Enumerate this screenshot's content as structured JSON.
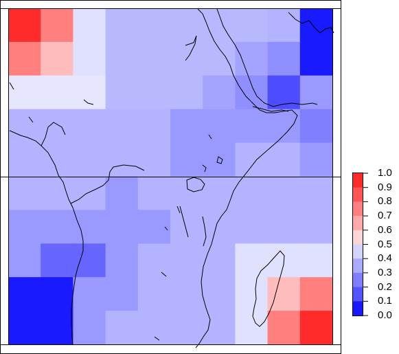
{
  "map": {
    "grid_rows": [
      [
        "#ff2a2a",
        "#ff7f7f",
        "#e0e0ff",
        "#b8b8ff",
        "#b8b8ff",
        "#b8b8ff",
        "#b8b8ff",
        "#b8b8ff",
        "#b3b3ff",
        "#1a1aff"
      ],
      [
        "#ff7f7f",
        "#ffbcbc",
        "#e0e0ff",
        "#b8b8ff",
        "#b8b8ff",
        "#b8b8ff",
        "#b8b8ff",
        "#a4a4ff",
        "#8f8fff",
        "#1a1aff"
      ],
      [
        "#e6e6ff",
        "#e6e6ff",
        "#e6e6ff",
        "#b8b8ff",
        "#b8b8ff",
        "#b8b8ff",
        "#a4a4ff",
        "#8f8fff",
        "#4d4dff",
        "#9999ff"
      ],
      [
        "#b3b3ff",
        "#b3b3ff",
        "#b3b3ff",
        "#b3b3ff",
        "#b3b3ff",
        "#9999ff",
        "#9999ff",
        "#9999ff",
        "#9999ff",
        "#8080ff"
      ],
      [
        "#b3b3ff",
        "#b3b3ff",
        "#b3b3ff",
        "#b3b3ff",
        "#b3b3ff",
        "#9999ff",
        "#9999ff",
        "#b3b3ff",
        "#b3b3ff",
        "#9999ff"
      ],
      [
        "#b3b3ff",
        "#b3b3ff",
        "#b3b3ff",
        "#9999ff",
        "#b3b3ff",
        "#b3b3ff",
        "#b3b3ff",
        "#b3b3ff",
        "#b3b3ff",
        "#b3b3ff"
      ],
      [
        "#9999ff",
        "#9999ff",
        "#9999ff",
        "#9999ff",
        "#9999ff",
        "#b3b3ff",
        "#b3b3ff",
        "#b3b3ff",
        "#b3b3ff",
        "#b3b3ff"
      ],
      [
        "#9999ff",
        "#6666ff",
        "#6666ff",
        "#9999ff",
        "#b3b3ff",
        "#b3b3ff",
        "#b3b3ff",
        "#e0e0ff",
        "#e0e0ff",
        "#e0e0ff"
      ],
      [
        "#1a1aff",
        "#1a1aff",
        "#9999ff",
        "#9999ff",
        "#b3b3ff",
        "#b3b3ff",
        "#b3b3ff",
        "#e0e0ff",
        "#ffbcbc",
        "#ff7f7f"
      ],
      [
        "#1a1aff",
        "#1a1aff",
        "#9999ff",
        "#b3b3ff",
        "#b3b3ff",
        "#b3b3ff",
        "#b3b3ff",
        "#e0e0ff",
        "#ff7f7f",
        "#ff2a2a"
      ]
    ],
    "line_color": "#000000"
  },
  "legend": {
    "ticks": [
      "1.0",
      "0.9",
      "0.8",
      "0.7",
      "0.6",
      "0.5",
      "0.4",
      "0.3",
      "0.2",
      "0.1",
      "0.0"
    ],
    "colors": [
      "#ff2a2a",
      "#ff5555",
      "#ff7f7f",
      "#ffaaaa",
      "#ffd4d4",
      "#d4d4ff",
      "#aaaaff",
      "#7f7fff",
      "#5555ff",
      "#1a1aff"
    ]
  }
}
